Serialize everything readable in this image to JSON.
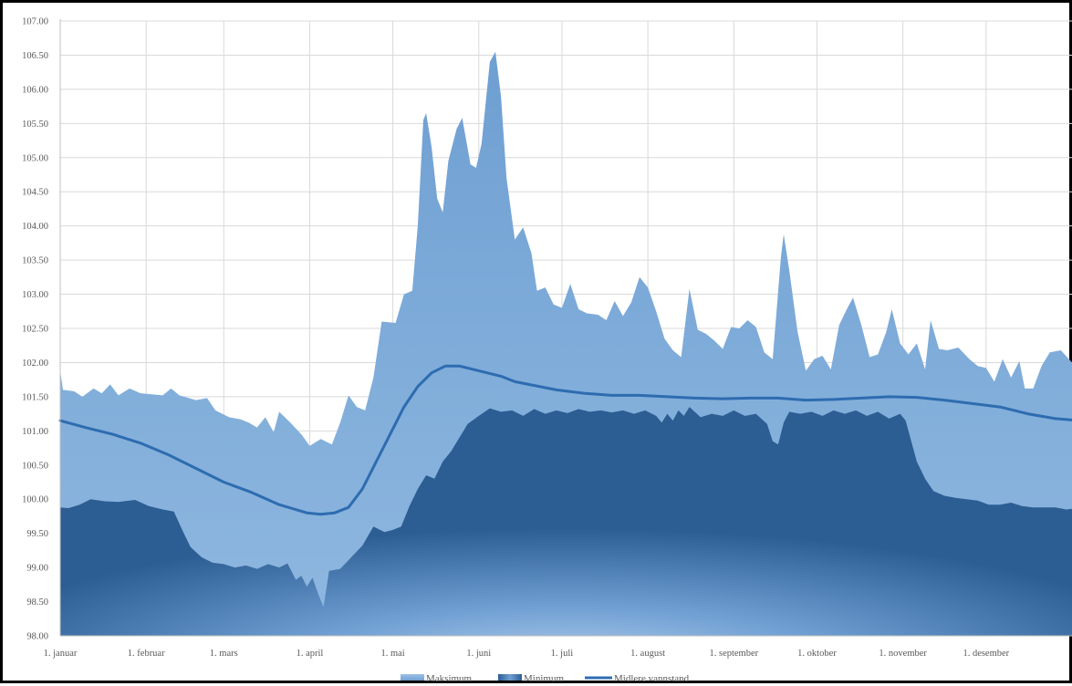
{
  "chart_data": {
    "type": "area",
    "title": "",
    "xlabel": "",
    "ylabel": "",
    "ylim": [
      98.0,
      107.0
    ],
    "ytick_step": 0.5,
    "grid": true,
    "legend_position": "bottom-center",
    "month_ticks": [
      {
        "label": "1. januar",
        "day": 1
      },
      {
        "label": "1. februar",
        "day": 32
      },
      {
        "label": "1. mars",
        "day": 60
      },
      {
        "label": "1. april",
        "day": 91
      },
      {
        "label": "1. mai",
        "day": 121
      },
      {
        "label": "1. juni",
        "day": 152
      },
      {
        "label": "1. juli",
        "day": 182
      },
      {
        "label": "1. august",
        "day": 213
      },
      {
        "label": "1. september",
        "day": 244
      },
      {
        "label": "1. oktober",
        "day": 274
      },
      {
        "label": "1. november",
        "day": 305
      },
      {
        "label": "1. desember",
        "day": 335
      }
    ],
    "x_max_day": 366,
    "series": [
      {
        "name": "Maksimum",
        "kind": "area",
        "color": "#7aa9d8",
        "points": [
          [
            1,
            101.88
          ],
          [
            2,
            101.6
          ],
          [
            6,
            101.58
          ],
          [
            9,
            101.5
          ],
          [
            13,
            101.62
          ],
          [
            16,
            101.55
          ],
          [
            19,
            101.68
          ],
          [
            22,
            101.52
          ],
          [
            26,
            101.62
          ],
          [
            30,
            101.55
          ],
          [
            38,
            101.52
          ],
          [
            41,
            101.62
          ],
          [
            44,
            101.52
          ],
          [
            50,
            101.45
          ],
          [
            54,
            101.48
          ],
          [
            57,
            101.3
          ],
          [
            62,
            101.2
          ],
          [
            66,
            101.17
          ],
          [
            69,
            101.12
          ],
          [
            72,
            101.05
          ],
          [
            75,
            101.2
          ],
          [
            78,
            100.98
          ],
          [
            80,
            101.28
          ],
          [
            84,
            101.12
          ],
          [
            88,
            100.95
          ],
          [
            91,
            100.78
          ],
          [
            95,
            100.88
          ],
          [
            99,
            100.8
          ],
          [
            102,
            101.12
          ],
          [
            105,
            101.52
          ],
          [
            108,
            101.35
          ],
          [
            111,
            101.3
          ],
          [
            114,
            101.78
          ],
          [
            117,
            102.6
          ],
          [
            122,
            102.58
          ],
          [
            125,
            103.0
          ],
          [
            128,
            103.05
          ],
          [
            130,
            104.0
          ],
          [
            132,
            105.55
          ],
          [
            133,
            105.65
          ],
          [
            135,
            105.15
          ],
          [
            137,
            104.4
          ],
          [
            139,
            104.2
          ],
          [
            141,
            104.95
          ],
          [
            144,
            105.42
          ],
          [
            146,
            105.58
          ],
          [
            149,
            104.9
          ],
          [
            151,
            104.85
          ],
          [
            153,
            105.2
          ],
          [
            156,
            106.4
          ],
          [
            158,
            106.55
          ],
          [
            160,
            105.9
          ],
          [
            162,
            104.7
          ],
          [
            165,
            103.8
          ],
          [
            168,
            103.98
          ],
          [
            171,
            103.6
          ],
          [
            173,
            103.05
          ],
          [
            176,
            103.1
          ],
          [
            179,
            102.85
          ],
          [
            182,
            102.8
          ],
          [
            185,
            103.15
          ],
          [
            188,
            102.78
          ],
          [
            191,
            102.72
          ],
          [
            195,
            102.7
          ],
          [
            198,
            102.62
          ],
          [
            201,
            102.9
          ],
          [
            204,
            102.68
          ],
          [
            207,
            102.88
          ],
          [
            210,
            103.25
          ],
          [
            213,
            103.1
          ],
          [
            216,
            102.75
          ],
          [
            219,
            102.35
          ],
          [
            222,
            102.18
          ],
          [
            225,
            102.08
          ],
          [
            228,
            103.08
          ],
          [
            231,
            102.48
          ],
          [
            234,
            102.42
          ],
          [
            237,
            102.32
          ],
          [
            240,
            102.2
          ],
          [
            243,
            102.52
          ],
          [
            246,
            102.5
          ],
          [
            249,
            102.62
          ],
          [
            252,
            102.52
          ],
          [
            255,
            102.15
          ],
          [
            258,
            102.05
          ],
          [
            261,
            103.55
          ],
          [
            262,
            103.88
          ],
          [
            264,
            103.35
          ],
          [
            267,
            102.45
          ],
          [
            270,
            101.88
          ],
          [
            273,
            102.05
          ],
          [
            276,
            102.1
          ],
          [
            279,
            101.9
          ],
          [
            282,
            102.55
          ],
          [
            285,
            102.8
          ],
          [
            287,
            102.95
          ],
          [
            290,
            102.55
          ],
          [
            293,
            102.08
          ],
          [
            296,
            102.12
          ],
          [
            299,
            102.45
          ],
          [
            301,
            102.78
          ],
          [
            304,
            102.28
          ],
          [
            307,
            102.12
          ],
          [
            310,
            102.28
          ],
          [
            313,
            101.9
          ],
          [
            315,
            102.62
          ],
          [
            318,
            102.2
          ],
          [
            321,
            102.18
          ],
          [
            325,
            102.22
          ],
          [
            329,
            102.05
          ],
          [
            332,
            101.95
          ],
          [
            335,
            101.92
          ],
          [
            338,
            101.72
          ],
          [
            341,
            102.05
          ],
          [
            344,
            101.78
          ],
          [
            347,
            102.02
          ],
          [
            349,
            101.62
          ],
          [
            352,
            101.62
          ],
          [
            355,
            101.95
          ],
          [
            358,
            102.15
          ],
          [
            362,
            102.18
          ],
          [
            366,
            102.0
          ]
        ]
      },
      {
        "name": "Minimum",
        "kind": "area",
        "color": "#3f77b3",
        "points": [
          [
            1,
            99.88
          ],
          [
            4,
            99.87
          ],
          [
            8,
            99.92
          ],
          [
            12,
            100.0
          ],
          [
            17,
            99.97
          ],
          [
            22,
            99.96
          ],
          [
            28,
            99.99
          ],
          [
            33,
            99.9
          ],
          [
            38,
            99.85
          ],
          [
            42,
            99.82
          ],
          [
            45,
            99.55
          ],
          [
            48,
            99.3
          ],
          [
            52,
            99.15
          ],
          [
            56,
            99.07
          ],
          [
            60,
            99.05
          ],
          [
            64,
            99.0
          ],
          [
            68,
            99.03
          ],
          [
            72,
            98.98
          ],
          [
            76,
            99.05
          ],
          [
            80,
            99.0
          ],
          [
            83,
            99.06
          ],
          [
            86,
            98.82
          ],
          [
            88,
            98.88
          ],
          [
            90,
            98.72
          ],
          [
            92,
            98.85
          ],
          [
            94,
            98.62
          ],
          [
            96,
            98.42
          ],
          [
            98,
            98.95
          ],
          [
            102,
            98.98
          ],
          [
            106,
            99.15
          ],
          [
            110,
            99.32
          ],
          [
            114,
            99.6
          ],
          [
            118,
            99.52
          ],
          [
            121,
            99.55
          ],
          [
            124,
            99.6
          ],
          [
            127,
            99.9
          ],
          [
            130,
            100.15
          ],
          [
            133,
            100.35
          ],
          [
            136,
            100.3
          ],
          [
            139,
            100.55
          ],
          [
            142,
            100.7
          ],
          [
            145,
            100.9
          ],
          [
            148,
            101.1
          ],
          [
            152,
            101.22
          ],
          [
            156,
            101.33
          ],
          [
            160,
            101.28
          ],
          [
            164,
            101.3
          ],
          [
            168,
            101.22
          ],
          [
            172,
            101.32
          ],
          [
            176,
            101.25
          ],
          [
            180,
            101.3
          ],
          [
            184,
            101.26
          ],
          [
            188,
            101.32
          ],
          [
            192,
            101.28
          ],
          [
            196,
            101.3
          ],
          [
            200,
            101.27
          ],
          [
            204,
            101.3
          ],
          [
            208,
            101.25
          ],
          [
            212,
            101.3
          ],
          [
            216,
            101.22
          ],
          [
            218,
            101.12
          ],
          [
            220,
            101.25
          ],
          [
            222,
            101.15
          ],
          [
            224,
            101.3
          ],
          [
            226,
            101.22
          ],
          [
            228,
            101.35
          ],
          [
            232,
            101.2
          ],
          [
            236,
            101.25
          ],
          [
            240,
            101.22
          ],
          [
            244,
            101.3
          ],
          [
            248,
            101.22
          ],
          [
            252,
            101.25
          ],
          [
            256,
            101.1
          ],
          [
            258,
            100.85
          ],
          [
            260,
            100.8
          ],
          [
            262,
            101.12
          ],
          [
            264,
            101.28
          ],
          [
            268,
            101.25
          ],
          [
            272,
            101.28
          ],
          [
            276,
            101.22
          ],
          [
            280,
            101.3
          ],
          [
            284,
            101.25
          ],
          [
            288,
            101.3
          ],
          [
            292,
            101.22
          ],
          [
            296,
            101.28
          ],
          [
            300,
            101.18
          ],
          [
            304,
            101.25
          ],
          [
            306,
            101.15
          ],
          [
            308,
            100.85
          ],
          [
            310,
            100.55
          ],
          [
            313,
            100.3
          ],
          [
            316,
            100.12
          ],
          [
            320,
            100.05
          ],
          [
            324,
            100.02
          ],
          [
            328,
            100.0
          ],
          [
            332,
            99.98
          ],
          [
            336,
            99.92
          ],
          [
            340,
            99.92
          ],
          [
            344,
            99.95
          ],
          [
            348,
            99.9
          ],
          [
            352,
            99.88
          ],
          [
            356,
            99.88
          ],
          [
            360,
            99.88
          ],
          [
            364,
            99.85
          ],
          [
            366,
            99.86
          ]
        ]
      },
      {
        "name": "Midlere vannstand",
        "kind": "line",
        "color": "#2e6cb0",
        "points": [
          [
            1,
            101.15
          ],
          [
            10,
            101.05
          ],
          [
            20,
            100.95
          ],
          [
            30,
            100.82
          ],
          [
            40,
            100.65
          ],
          [
            50,
            100.45
          ],
          [
            60,
            100.25
          ],
          [
            70,
            100.1
          ],
          [
            80,
            99.92
          ],
          [
            90,
            99.8
          ],
          [
            95,
            99.78
          ],
          [
            100,
            99.8
          ],
          [
            105,
            99.88
          ],
          [
            110,
            100.15
          ],
          [
            115,
            100.55
          ],
          [
            120,
            100.95
          ],
          [
            125,
            101.35
          ],
          [
            130,
            101.65
          ],
          [
            135,
            101.85
          ],
          [
            140,
            101.95
          ],
          [
            145,
            101.95
          ],
          [
            150,
            101.9
          ],
          [
            155,
            101.85
          ],
          [
            160,
            101.8
          ],
          [
            165,
            101.72
          ],
          [
            170,
            101.68
          ],
          [
            180,
            101.6
          ],
          [
            190,
            101.55
          ],
          [
            200,
            101.52
          ],
          [
            210,
            101.52
          ],
          [
            220,
            101.5
          ],
          [
            230,
            101.48
          ],
          [
            240,
            101.47
          ],
          [
            250,
            101.48
          ],
          [
            260,
            101.48
          ],
          [
            270,
            101.45
          ],
          [
            280,
            101.46
          ],
          [
            290,
            101.48
          ],
          [
            300,
            101.5
          ],
          [
            310,
            101.49
          ],
          [
            320,
            101.45
          ],
          [
            330,
            101.4
          ],
          [
            340,
            101.35
          ],
          [
            350,
            101.25
          ],
          [
            360,
            101.18
          ],
          [
            366,
            101.16
          ]
        ]
      }
    ]
  }
}
